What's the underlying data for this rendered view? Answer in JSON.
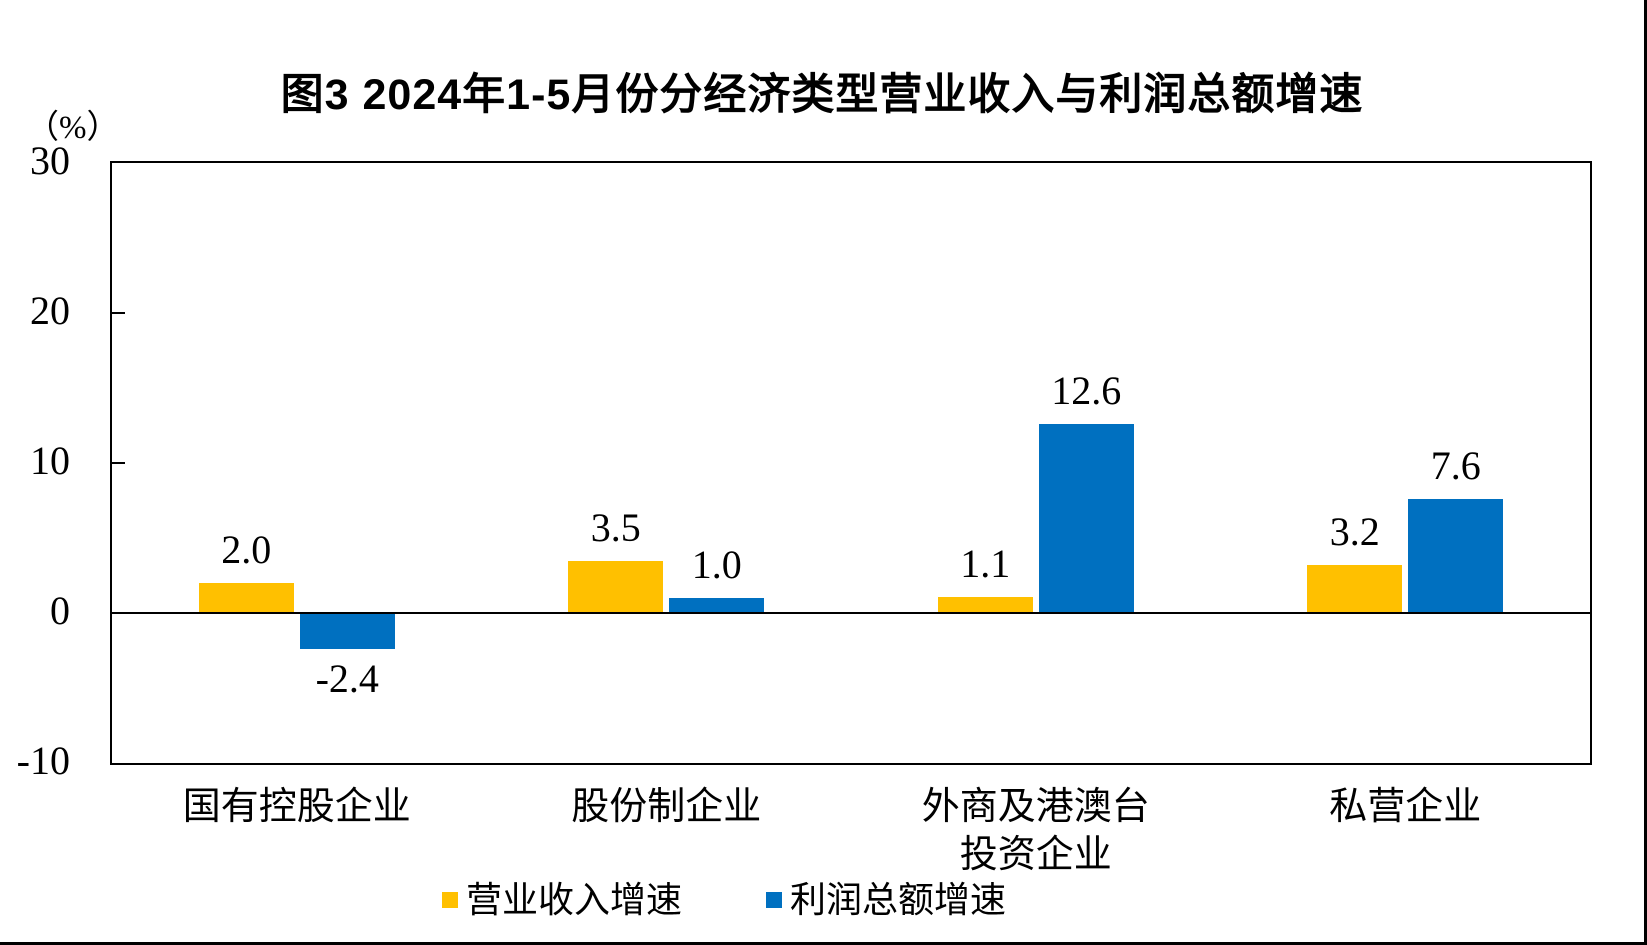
{
  "chart_data": {
    "type": "bar",
    "title": "图3 2024年1-5月份分经济类型营业收入与利润总额增速",
    "unit_label": "（%）",
    "categories": [
      "国有控股企业",
      "股份制企业",
      "外商及港澳台\n投资企业",
      "私营企业"
    ],
    "series": [
      {
        "key": "revenue",
        "name": "营业收入增速",
        "color": "#FFC000",
        "values": [
          2.0,
          3.5,
          1.1,
          3.2
        ],
        "labels": [
          "2.0",
          "3.5",
          "1.1",
          "3.2"
        ]
      },
      {
        "key": "profit",
        "name": "利润总额增速",
        "color": "#0070C0",
        "values": [
          -2.4,
          1.0,
          12.6,
          7.6
        ],
        "labels": [
          "-2.4",
          "1.0",
          "12.6",
          "7.6"
        ]
      }
    ],
    "ylim": [
      -10,
      30
    ],
    "yticks": [
      30,
      20,
      10,
      0,
      -10
    ],
    "grid": false,
    "legend_position": "bottom"
  }
}
